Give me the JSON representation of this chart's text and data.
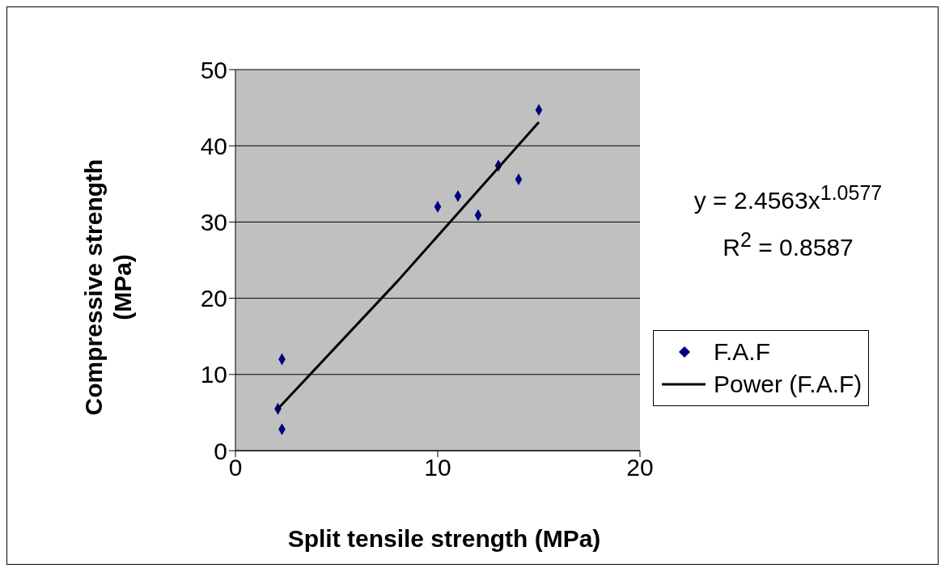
{
  "chart_data": {
    "type": "scatter",
    "xlabel": "Split tensile strength (MPa)",
    "ylabel": "Compressive strength (MPa)",
    "x": [
      2.3,
      2.1,
      2.3,
      10,
      11,
      12,
      13,
      14,
      15
    ],
    "series": [
      {
        "name": "F.A.F",
        "color": "#000080",
        "values": [
          12,
          5.5,
          2.8,
          32,
          33.4,
          30.9,
          37.4,
          35.6,
          44.7
        ],
        "marker": "diamond"
      },
      {
        "name": "Power (F.A.F)",
        "type": "line",
        "color": "#000000",
        "x": [
          2.1,
          8,
          15
        ],
        "values": [
          5.5,
          22.2,
          43.1
        ],
        "marker": "none",
        "line_style": "solid"
      }
    ],
    "annotations": [
      "y = 2.4563x$^{1.0577}$",
      "R$^{2}$ = 0.8587"
    ],
    "xlim": [
      0,
      20
    ],
    "xticks": [
      0,
      10,
      20
    ],
    "ylim": [
      0,
      50
    ],
    "yticks": [
      0,
      10,
      20,
      30,
      40,
      50
    ],
    "grid": "y",
    "legend": "right"
  }
}
